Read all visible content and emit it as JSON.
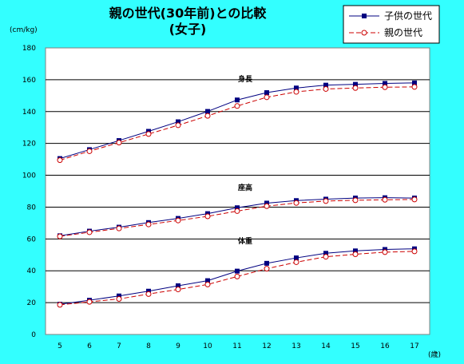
{
  "chart_data": {
    "type": "line",
    "title": "親の世代(30年前)との比較",
    "subtitle": "(女子)",
    "ylabel": "(cm/kg)",
    "xlabel": "(歳)",
    "x": [
      5,
      6,
      7,
      8,
      9,
      10,
      11,
      12,
      13,
      14,
      15,
      16,
      17
    ],
    "ylim": [
      0,
      180
    ],
    "yticks": [
      0,
      20,
      40,
      60,
      80,
      100,
      120,
      140,
      160,
      180
    ],
    "grid": true,
    "legend_position": "top-right",
    "annotations": [
      "身長",
      "座高",
      "体重"
    ],
    "series": [
      {
        "name": "子供の世代",
        "color": "#000080",
        "dashed": false,
        "marker": "filled-square",
        "groups": [
          {
            "label": "身長",
            "values": [
              110.5,
              116.1,
              121.8,
              127.6,
              133.6,
              140.1,
              147.3,
              151.9,
              154.8,
              156.6,
              157.1,
              157.7,
              158.0
            ]
          },
          {
            "label": "座高",
            "values": [
              62.0,
              64.9,
              67.4,
              70.3,
              72.9,
              75.9,
              79.6,
              82.5,
              84.1,
              85.0,
              85.7,
              85.9,
              85.7
            ]
          },
          {
            "label": "体重",
            "values": [
              19.0,
              21.5,
              24.2,
              27.2,
              30.6,
              33.8,
              39.8,
              44.7,
              48.1,
              51.0,
              52.5,
              53.4,
              53.8
            ]
          }
        ]
      },
      {
        "name": "親の世代",
        "color": "#cc0000",
        "dashed": true,
        "marker": "hollow-circle",
        "groups": [
          {
            "label": "身長",
            "values": [
              109.5,
              115.1,
              120.5,
              125.9,
              131.4,
              137.3,
              143.5,
              149.0,
              152.4,
              154.2,
              154.8,
              155.3,
              155.5
            ]
          },
          {
            "label": "座高",
            "values": [
              61.6,
              64.2,
              66.6,
              69.1,
              71.6,
              74.2,
              77.5,
              80.6,
              82.6,
              83.8,
              84.3,
              84.6,
              84.8
            ]
          },
          {
            "label": "体重",
            "values": [
              18.6,
              20.5,
              22.3,
              25.4,
              28.3,
              31.4,
              36.4,
              41.3,
              45.4,
              48.8,
              50.4,
              51.7,
              52.2
            ]
          }
        ]
      }
    ]
  }
}
